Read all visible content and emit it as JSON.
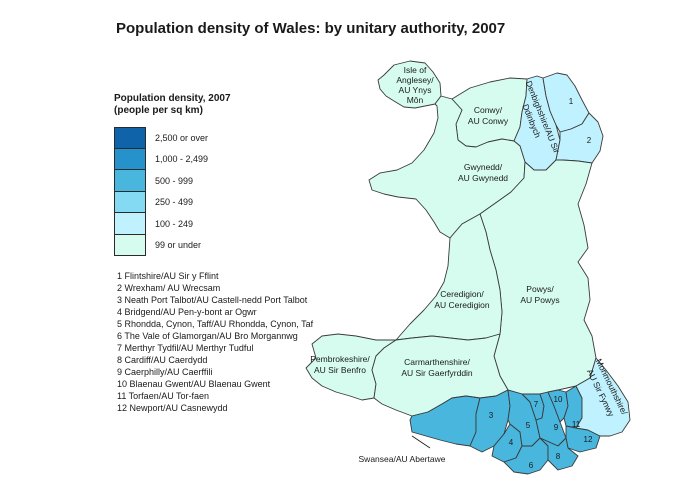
{
  "title": "Population density of Wales: by unitary authority, 2007",
  "legend": {
    "title_line1": "Population density, 2007",
    "title_line2": "(people per sq km)",
    "classes": [
      {
        "label": "2,500 or over",
        "color": "#0f63a8"
      },
      {
        "label": "1,000 - 2,499",
        "color": "#2692cc"
      },
      {
        "label": "500 - 999",
        "color": "#49b6de"
      },
      {
        "label": "250 - 499",
        "color": "#84d9f3"
      },
      {
        "label": "100 - 249",
        "color": "#c0f1ff"
      },
      {
        "label": "99 or under",
        "color": "#d6fcf0"
      }
    ]
  },
  "key": [
    "1  Flintshire/AU Sir y Fflint",
    "2  Wrexham/ AU Wrecsam",
    "3  Neath Port Talbot/AU Castell-nedd Port Talbot",
    "4  Bridgend/AU Pen-y-bont ar Ogwr",
    "5  Rhondda, Cynon, Taff/AU Rhondda, Cynon, Taf",
    "6  The Vale of Glamorgan/AU Bro Morgannwg",
    "7  Merthyr Tydfil/AU Merthyr Tudful",
    "8  Cardiff/AU Caerdydd",
    "9  Caerphilly/AU Caerffili",
    "10  Blaenau Gwent/AU Blaenau Gwent",
    "11  Torfaen/AU Tor-faen",
    "12  Newport/AU Casnewydd"
  ],
  "map": {
    "regions": {
      "anglesey": {
        "line1": "Isle of",
        "line2": "Anglesey/",
        "line3": "AU Ynys",
        "line4": "Môn",
        "density_class": "99 or under"
      },
      "conwy": {
        "line1": "Conwy/",
        "line2": "AU Conwy",
        "density_class": "99 or under"
      },
      "denbighshire": {
        "line1": "Denbighshire/AU Sir",
        "line2": "Ddinbych",
        "density_class": "100 - 249"
      },
      "gwynedd": {
        "line1": "Gwynedd/",
        "line2": "AU Gwynedd",
        "density_class": "99 or under"
      },
      "powys": {
        "line1": "Powys/",
        "line2": "AU Powys",
        "density_class": "99 or under"
      },
      "ceredigion": {
        "line1": "Ceredigion/",
        "line2": "AU Ceredigion",
        "density_class": "99 or under"
      },
      "pembrokeshire": {
        "line1": "Pembrokeshire/",
        "line2": "AU Sir Benfro",
        "density_class": "99 or under"
      },
      "carmarthenshire": {
        "line1": "Carmarthenshire/",
        "line2": "AU Sir Gaerfyrddin",
        "density_class": "99 or under"
      },
      "monmouthshire": {
        "line1": "Monmouthshire/",
        "line2": "AU Sir Fynwy",
        "density_class": "100 - 249"
      },
      "swansea": {
        "label": "Swansea/AU Abertawe",
        "density_class": "500 - 999"
      }
    },
    "numbers": [
      "1",
      "2",
      "3",
      "4",
      "5",
      "6",
      "7",
      "8",
      "9",
      "10",
      "11",
      "12"
    ]
  }
}
